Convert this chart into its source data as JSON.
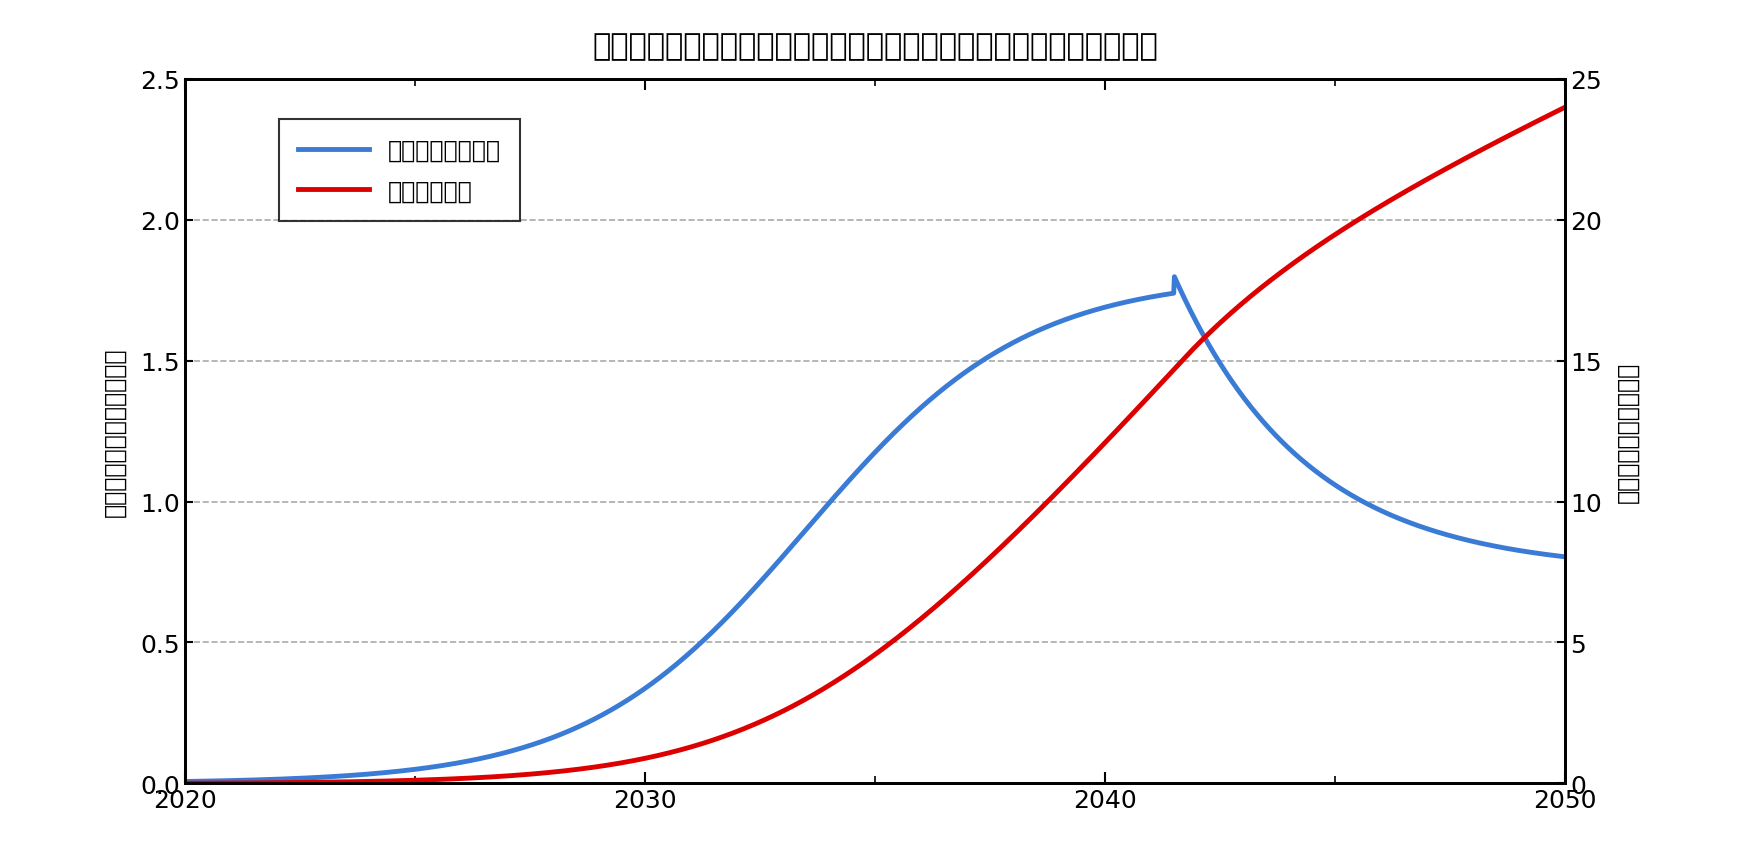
{
  "title": "クリアランス対象物のうち金属の発生見通し（電気事業連合会試算）",
  "ylabel_left": "年間推定発生量［万トン］",
  "ylabel_right": "累計発生量［万トン］",
  "xlim": [
    2020,
    2050
  ],
  "ylim_left": [
    0,
    2.5
  ],
  "ylim_right": [
    0,
    25
  ],
  "yticks_left": [
    0.0,
    0.5,
    1.0,
    1.5,
    2.0,
    2.5
  ],
  "yticks_right": [
    0,
    5,
    10,
    15,
    20,
    25
  ],
  "xticks_major": [
    2020,
    2030,
    2040,
    2050
  ],
  "xticks_minor": [
    2025,
    2035,
    2045
  ],
  "grid_color": "#aaaaaa",
  "legend_blue_label": "：年間推定発生量",
  "legend_red_label": "：累計発生量",
  "line_blue_color": "#3a7bd5",
  "line_red_color": "#dd0000",
  "line_width": 3.5,
  "background_color": "#ffffff",
  "title_fontsize": 22,
  "label_fontsize": 17,
  "tick_fontsize": 18,
  "legend_fontsize": 17,
  "spine_linewidth": 2.0
}
